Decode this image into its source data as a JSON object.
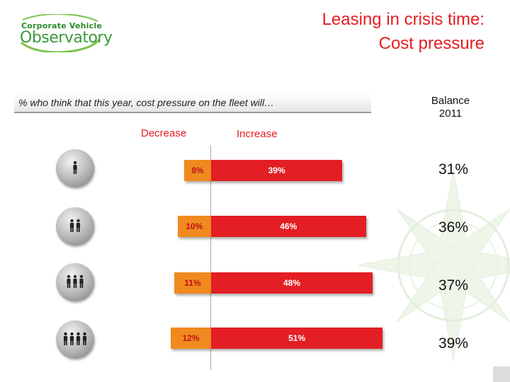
{
  "logo": {
    "line1": "Corporate Vehicle",
    "line2": "Observatory"
  },
  "title": {
    "line1": "Leasing in crisis time:",
    "line2": "Cost pressure"
  },
  "colors": {
    "decrease": "#f08a1e",
    "increase": "#e31e24",
    "title": "#e31e24"
  },
  "chart_data": {
    "type": "bar",
    "orientation": "horizontal-diverging",
    "question": "% who think that this year, cost pressure on the fleet will…",
    "series": [
      {
        "name": "Decrease",
        "values": [
          8,
          10,
          11,
          12
        ]
      },
      {
        "name": "Increase",
        "values": [
          39,
          46,
          48,
          51
        ]
      }
    ],
    "categories": [
      "1 person icon",
      "2 persons icon",
      "3 persons icon",
      "4 persons icon"
    ],
    "balance_header": [
      "Balance",
      "2011"
    ],
    "balance": [
      31,
      36,
      37,
      39
    ],
    "labels": {
      "decrease": [
        "8%",
        "10%",
        "11%",
        "12%"
      ],
      "increase": [
        "39%",
        "46%",
        "48%",
        "51%"
      ],
      "balance": [
        "31%",
        "36%",
        "37%",
        "39%"
      ]
    },
    "xlim": [
      -12,
      51
    ],
    "unit": "%"
  }
}
